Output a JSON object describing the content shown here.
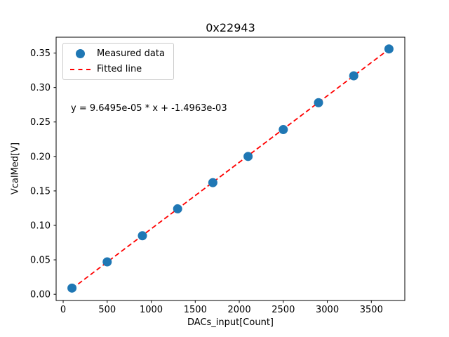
{
  "chart_data": {
    "type": "scatter",
    "title": "0x22943",
    "xlabel": "DACs_input[Count]",
    "ylabel": "VcalMed[V]",
    "annotation": "y = 9.6495e-05 * x + -1.4963e-03",
    "xlim": [
      -80,
      3880
    ],
    "ylim": [
      -0.009,
      0.373
    ],
    "xticks": [
      0,
      500,
      1000,
      1500,
      2000,
      2500,
      3000,
      3500
    ],
    "xtick_labels": [
      "0",
      "500",
      "1000",
      "1500",
      "2000",
      "2500",
      "3000",
      "3500"
    ],
    "yticks": [
      0.0,
      0.05,
      0.1,
      0.15,
      0.2,
      0.25,
      0.3,
      0.35
    ],
    "ytick_labels": [
      "0.00",
      "0.05",
      "0.10",
      "0.15",
      "0.20",
      "0.25",
      "0.30",
      "0.35"
    ],
    "grid": false,
    "legend_position": "upper-left",
    "series": [
      {
        "name": "Measured data",
        "type": "scatter",
        "color": "#1f77b4",
        "x": [
          100,
          500,
          900,
          1300,
          1700,
          2100,
          2500,
          2900,
          3300,
          3700
        ],
        "y": [
          0.009,
          0.047,
          0.085,
          0.124,
          0.162,
          0.2,
          0.239,
          0.278,
          0.317,
          0.356
        ]
      },
      {
        "name": "Fitted line",
        "type": "line",
        "style": "dashed",
        "color": "#ff0000",
        "slope": 9.6495e-05,
        "intercept": -0.0014963
      }
    ]
  }
}
